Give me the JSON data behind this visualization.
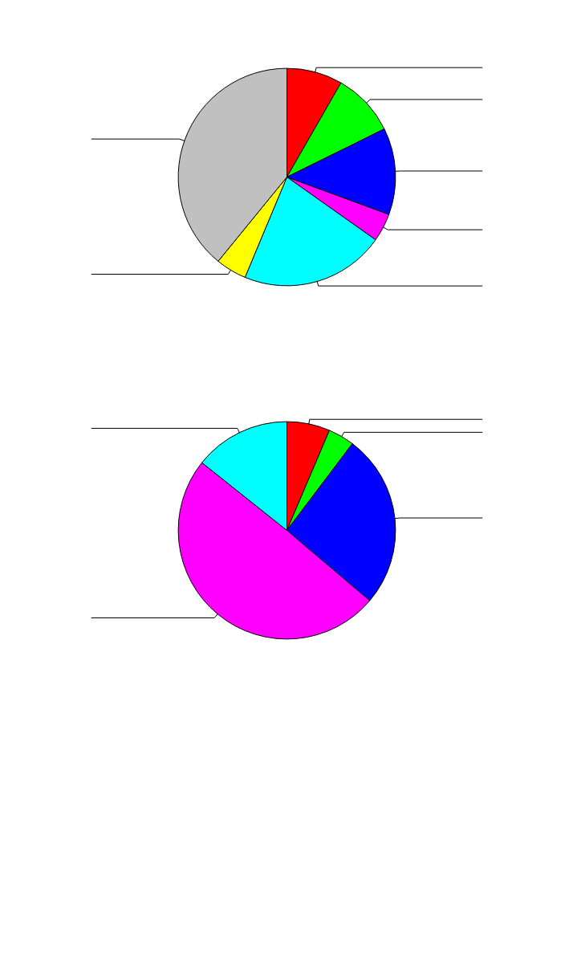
{
  "chart_data": [
    {
      "type": "pie",
      "categories": [
        null,
        null,
        null,
        null,
        null,
        null,
        null
      ],
      "values": [
        8.3,
        9.4,
        12.9,
        4.2,
        21.5,
        4.6,
        39.1
      ],
      "colors": [
        "#ff0000",
        "#00ff00",
        "#0000ff",
        "#ff00ff",
        "#00ffff",
        "#ffff00",
        "#c0c0c0"
      ]
    },
    {
      "type": "pie",
      "categories": [
        null,
        null,
        null,
        null,
        null
      ],
      "values": [
        6.4,
        3.9,
        25.9,
        49.5,
        14.3
      ],
      "colors": [
        "#ff0000",
        "#00ff00",
        "#0000ff",
        "#ff00ff",
        "#00ffff"
      ]
    }
  ]
}
